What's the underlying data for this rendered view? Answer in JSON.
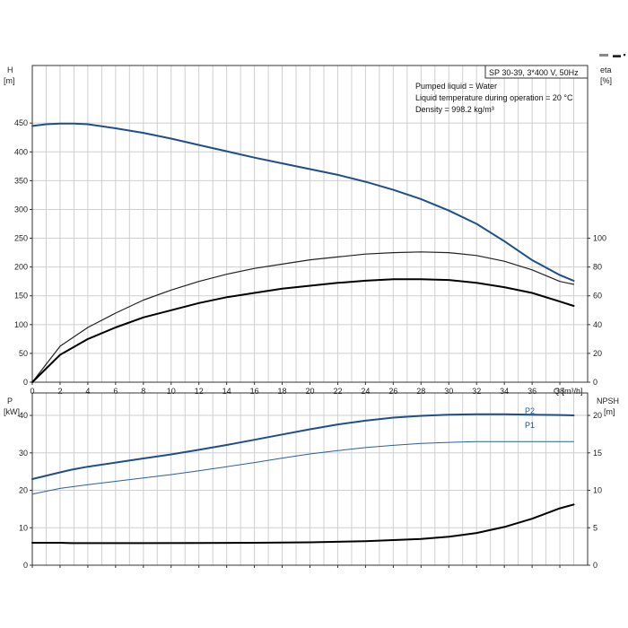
{
  "chart_data": [
    {
      "type": "line",
      "name": "performance",
      "x_axis": {
        "label": "Q [m³/h]",
        "ticks": [
          0,
          2,
          4,
          6,
          8,
          10,
          12,
          14,
          16,
          18,
          20,
          22,
          24,
          26,
          28,
          30,
          32,
          34,
          36,
          38
        ],
        "range": [
          0,
          40
        ]
      },
      "y_left": {
        "label": "H",
        "unit": "[m]",
        "ticks": [
          0,
          50,
          100,
          150,
          200,
          250,
          300,
          350,
          400,
          450
        ],
        "range": [
          0,
          550
        ]
      },
      "y_right": {
        "label": "eta",
        "unit": "[%]",
        "ticks": [
          0,
          20,
          40,
          60,
          80,
          100
        ],
        "range": [
          0,
          220
        ]
      },
      "info_box": {
        "title": "SP 30-39, 3*400 V, 50Hz",
        "lines": [
          "Pumped liquid = Water",
          "Liquid temperature during operation = 20 °C",
          "Density = 998.2 kg/m³"
        ]
      },
      "grid": true,
      "series": [
        {
          "axis": "left",
          "color": "#1f4e8c",
          "width": 2,
          "x": [
            0,
            1,
            2,
            3,
            4,
            6,
            8,
            10,
            12,
            14,
            16,
            18,
            20,
            22,
            24,
            26,
            28,
            30,
            32,
            34,
            36,
            38,
            39
          ],
          "y": [
            445,
            448,
            449,
            449,
            448,
            441,
            433,
            423,
            412,
            401,
            390,
            380,
            370,
            360,
            348,
            334,
            318,
            298,
            275,
            245,
            212,
            186,
            176
          ]
        },
        {
          "axis": "right",
          "color": "#222222",
          "width": 1.2,
          "x": [
            0,
            2,
            4,
            6,
            8,
            10,
            12,
            14,
            16,
            18,
            20,
            22,
            24,
            26,
            28,
            30,
            32,
            34,
            36,
            38,
            39
          ],
          "y": [
            0,
            25,
            38,
            48,
            57,
            64,
            70,
            75,
            79,
            82,
            85,
            87,
            89,
            90,
            90.5,
            90,
            88,
            84,
            78,
            70,
            68
          ]
        },
        {
          "axis": "right",
          "color": "#000000",
          "width": 2,
          "x": [
            0,
            2,
            4,
            6,
            8,
            10,
            12,
            14,
            16,
            18,
            20,
            22,
            24,
            26,
            28,
            30,
            32,
            34,
            36,
            38,
            39
          ],
          "y": [
            0,
            19,
            30,
            38,
            45,
            50,
            55,
            59,
            62,
            65,
            67,
            69,
            70.5,
            71.5,
            71.5,
            71,
            69,
            66,
            62,
            56,
            53
          ]
        }
      ]
    },
    {
      "type": "line",
      "name": "power-npsh",
      "x_axis": {
        "ticks": [
          0,
          2,
          4,
          6,
          8,
          10,
          12,
          14,
          16,
          18,
          20,
          22,
          24,
          26,
          28,
          30,
          32,
          34,
          36,
          38
        ],
        "range": [
          0,
          40
        ]
      },
      "y_left": {
        "label": "P",
        "unit": "[kW]",
        "ticks": [
          0,
          10,
          20,
          30,
          40
        ],
        "range": [
          0,
          46
        ]
      },
      "y_right": {
        "label": "NPSH",
        "unit": "[m]",
        "ticks": [
          0,
          5,
          10,
          15,
          20
        ],
        "range": [
          0,
          23
        ]
      },
      "grid": true,
      "series": [
        {
          "name": "P1",
          "axis": "left",
          "color": "#1f4e8c",
          "width": 2,
          "x": [
            0,
            2,
            2.8,
            4,
            6,
            8,
            10,
            12,
            14,
            16,
            18,
            20,
            22,
            24,
            26,
            28,
            30,
            32,
            34,
            36,
            38,
            39
          ],
          "y": [
            23,
            24.8,
            25.5,
            26.3,
            27.4,
            28.5,
            29.6,
            30.8,
            32.1,
            33.5,
            34.9,
            36.3,
            37.6,
            38.6,
            39.4,
            39.9,
            40.2,
            40.3,
            40.3,
            40.2,
            40.1,
            40
          ]
        },
        {
          "name": "P2",
          "axis": "left",
          "color": "#2a5fa0",
          "width": 1,
          "x": [
            0,
            2,
            4,
            6,
            8,
            10,
            12,
            14,
            16,
            18,
            20,
            22,
            24,
            26,
            28,
            30,
            32,
            34,
            36,
            38,
            39
          ],
          "y": [
            19,
            20.5,
            21.5,
            22.4,
            23.3,
            24.2,
            25.2,
            26.3,
            27.4,
            28.6,
            29.7,
            30.6,
            31.4,
            32,
            32.5,
            32.8,
            33,
            33,
            33,
            33,
            33
          ]
        },
        {
          "axis": "right",
          "color": "#000000",
          "width": 2,
          "x": [
            0,
            2,
            2.8,
            4,
            8,
            12,
            16,
            20,
            24,
            28,
            30,
            32,
            34,
            36,
            38,
            39
          ],
          "y": [
            3,
            3,
            2.95,
            2.95,
            2.95,
            2.97,
            3,
            3.05,
            3.2,
            3.5,
            3.8,
            4.3,
            5.1,
            6.2,
            7.6,
            8.1
          ]
        }
      ]
    }
  ],
  "legend_hint": "▬ ▪ ¹"
}
